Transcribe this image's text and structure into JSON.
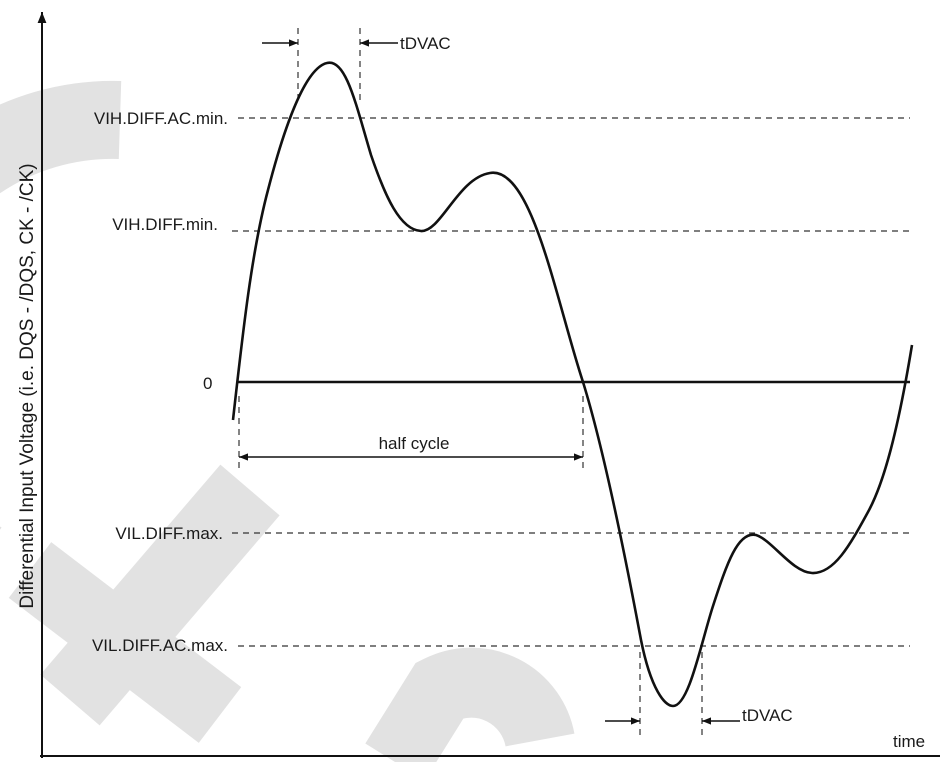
{
  "diagram": {
    "y_axis_label": "Differential Input Voltage (i.e. DQS - /DQS, CK - /CK)",
    "x_axis_label": "time",
    "zero_label": "0",
    "levels": {
      "vih_ac": "VIH.DIFF.AC.min.",
      "vih": "VIH.DIFF.min.",
      "vil": "VIL.DIFF.max.",
      "vil_ac": "VIL.DIFF.AC.max."
    },
    "half_cycle_label": "half cycle",
    "tdvac_top": "tDVAC",
    "tdvac_bottom": "tDVAC"
  },
  "colors": {
    "line": "#111111",
    "watermark": "#e2e2e2"
  }
}
